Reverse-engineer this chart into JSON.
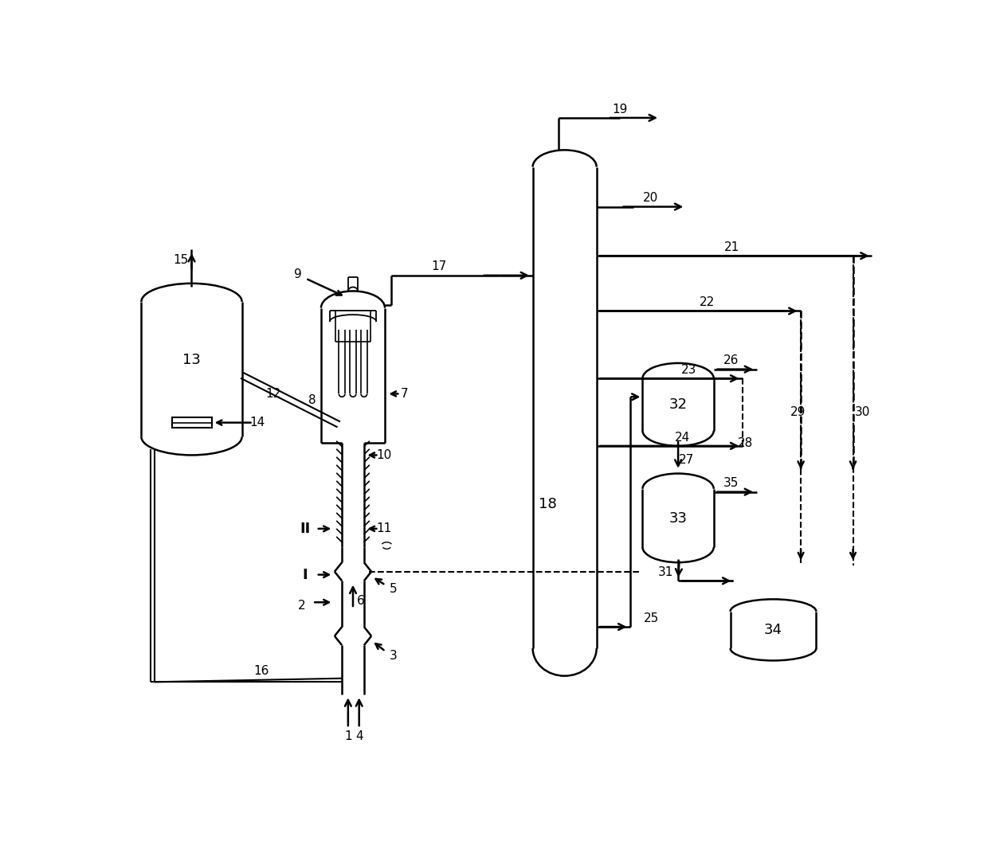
{
  "bg_color": "#ffffff",
  "line_color": "#000000",
  "lw": 1.8,
  "fs": 11,
  "fs_big": 13
}
